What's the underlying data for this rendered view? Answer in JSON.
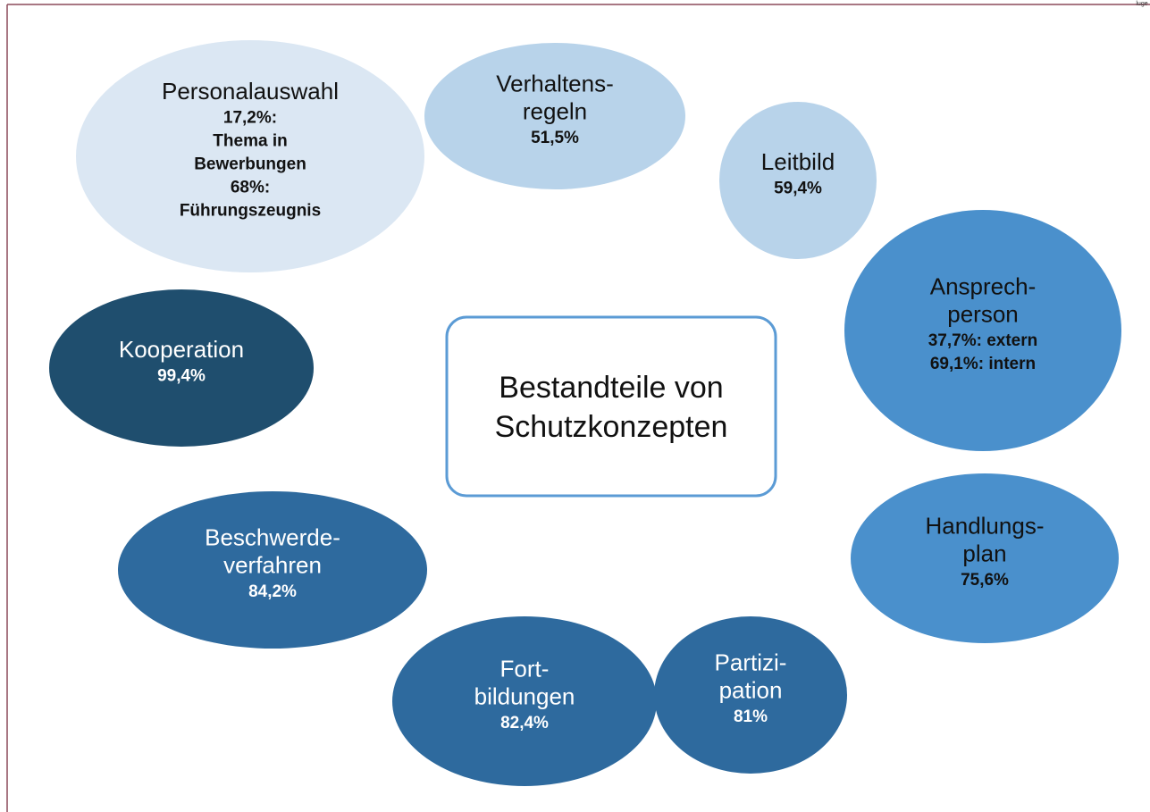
{
  "corner_text": "luge",
  "center": {
    "lines": [
      "Bestandteile von",
      "Schutzkonzepten"
    ]
  },
  "nodes": [
    {
      "title_lines": [
        "Personalauswahl"
      ],
      "detail_lines": [
        "17,2%:",
        "Thema in",
        "Bewerbungen",
        "68%:",
        "Führungszeugnis"
      ]
    },
    {
      "title_lines": [
        "Verhaltens-",
        "regeln"
      ],
      "detail_lines": [
        "51,5%"
      ]
    },
    {
      "title_lines": [
        "Leitbild"
      ],
      "detail_lines": [
        "59,4%"
      ]
    },
    {
      "title_lines": [
        "Ansprech-",
        "person"
      ],
      "detail_lines": [
        "37,7%: extern",
        "69,1%: intern"
      ]
    },
    {
      "title_lines": [
        "Handlungs-",
        "plan"
      ],
      "detail_lines": [
        "75,6%"
      ]
    },
    {
      "title_lines": [
        "Partizi-",
        "pation"
      ],
      "detail_lines": [
        "81%"
      ]
    },
    {
      "title_lines": [
        "Fort-",
        "bildungen"
      ],
      "detail_lines": [
        "82,4%"
      ]
    },
    {
      "title_lines": [
        "Beschwerde-",
        "verfahren"
      ],
      "detail_lines": [
        "84,2%"
      ]
    },
    {
      "title_lines": [
        "Kooperation"
      ],
      "detail_lines": [
        "99,4%"
      ]
    }
  ]
}
